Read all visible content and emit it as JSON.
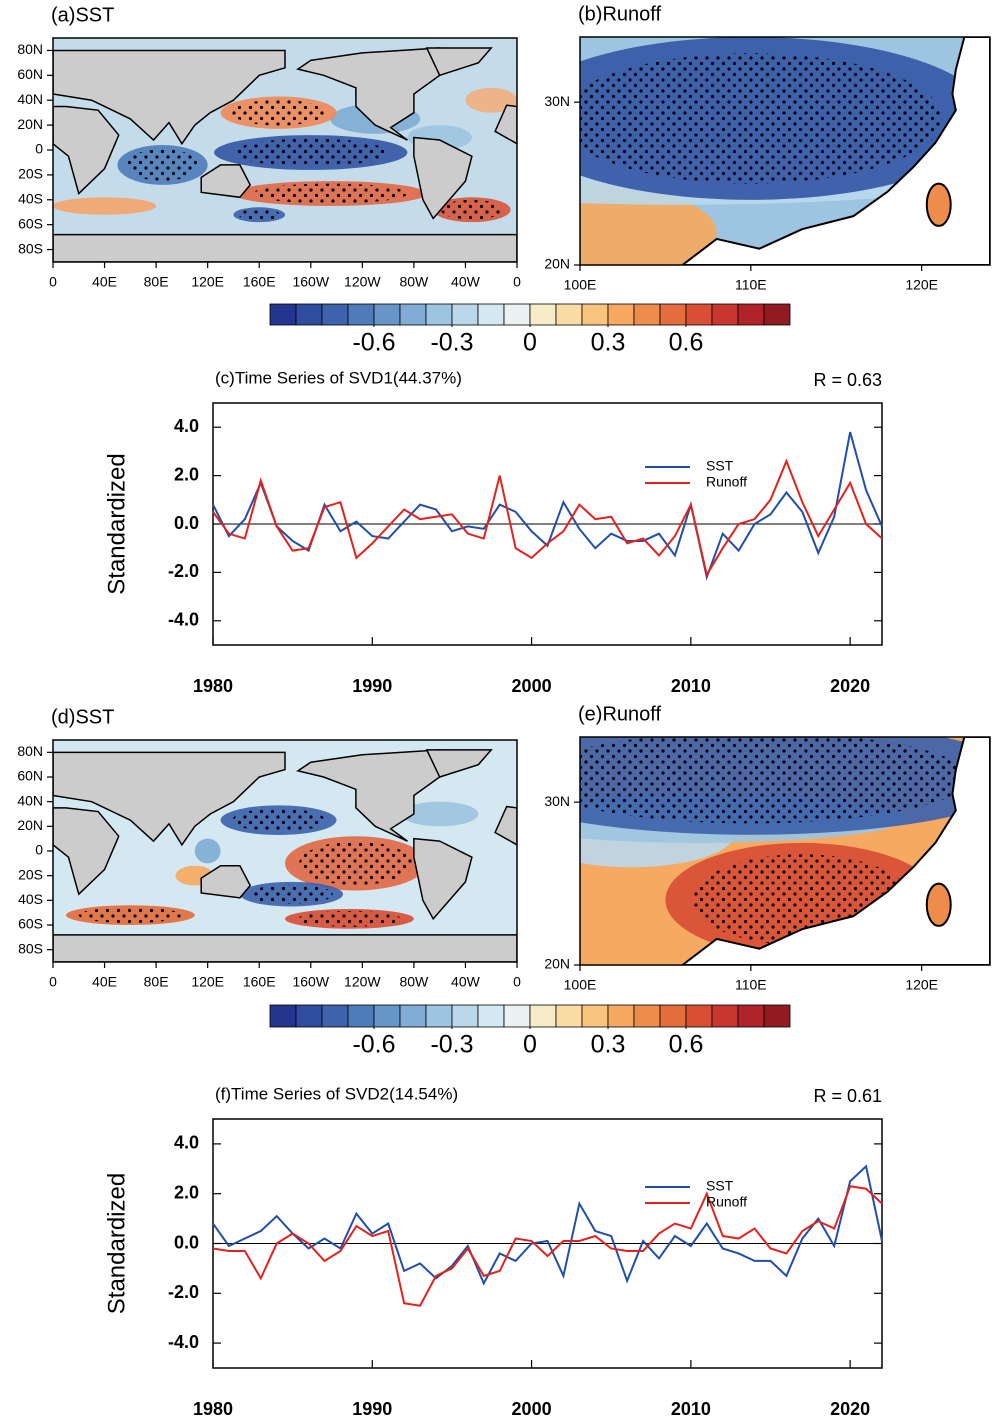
{
  "chart_data": [
    {
      "type": "map",
      "title": "(a)SST",
      "xlim": [
        0,
        360
      ],
      "xticks": [
        0,
        {
          "value": 40,
          "label": "40E"
        },
        {
          "value": 80,
          "label": "80E"
        },
        {
          "value": 120,
          "label": "120E"
        },
        {
          "value": 160,
          "label": "160E"
        },
        {
          "value": 200,
          "label": "160W"
        },
        {
          "value": 240,
          "label": "120W"
        },
        {
          "value": 280,
          "label": "80W"
        },
        {
          "value": 320,
          "label": "40W"
        },
        {
          "value": 360,
          "label": "0"
        }
      ],
      "ylim": [
        -90,
        90
      ],
      "yticks": [
        {
          "value": -80,
          "label": "80S"
        },
        {
          "value": -60,
          "label": "60S"
        },
        {
          "value": -40,
          "label": "40S"
        },
        {
          "value": -20,
          "label": "20S"
        },
        0,
        {
          "value": 20,
          "label": "20N"
        },
        {
          "value": 40,
          "label": "40N"
        },
        {
          "value": 60,
          "label": "60N"
        },
        {
          "value": 80,
          "label": "80N"
        }
      ]
    },
    {
      "type": "map",
      "title": "(b)Runoff",
      "xlim": [
        100,
        124
      ],
      "xticks": [
        {
          "value": 100,
          "label": "100E"
        },
        {
          "value": 110,
          "label": "110E"
        },
        {
          "value": 120,
          "label": "120E"
        }
      ],
      "ylim": [
        20,
        34
      ],
      "yticks": [
        {
          "value": 20,
          "label": "20N"
        },
        {
          "value": 30,
          "label": "30N"
        }
      ]
    },
    {
      "type": "colorbar",
      "colors": [
        "#24358f",
        "#2f4d9e",
        "#3d63ad",
        "#4e7cba",
        "#6596c7",
        "#7fadd4",
        "#9dc4e0",
        "#bad8ea",
        "#d4e8f1",
        "#e9f2f1",
        "#f6ecc8",
        "#f9dca4",
        "#f8c47e",
        "#f5a961",
        "#ee8c4c",
        "#e46d3e",
        "#d84f36",
        "#c8362f",
        "#b0232a",
        "#921a21"
      ],
      "xlim": [
        -1,
        1
      ],
      "xticks": [
        -0.6,
        -0.3,
        0,
        0.3,
        0.6
      ]
    },
    {
      "type": "line",
      "title": "(c)Time Series of SVD1(44.37%)",
      "annotation": "R = 0.63",
      "y_label": "Standardized",
      "x": [
        1980,
        1981,
        1982,
        1983,
        1984,
        1985,
        1986,
        1987,
        1988,
        1989,
        1990,
        1991,
        1992,
        1993,
        1994,
        1995,
        1996,
        1997,
        1998,
        1999,
        2000,
        2001,
        2002,
        2003,
        2004,
        2005,
        2006,
        2007,
        2008,
        2009,
        2010,
        2011,
        2012,
        2013,
        2014,
        2015,
        2016,
        2017,
        2018,
        2019,
        2020,
        2021,
        2022
      ],
      "series": [
        {
          "name": "SST",
          "color": "#1f4fa8",
          "values": [
            0.8,
            -0.5,
            0.2,
            1.7,
            -0.1,
            -0.7,
            -1.1,
            0.8,
            -0.3,
            0.1,
            -0.5,
            -0.6,
            0.1,
            0.8,
            0.6,
            -0.3,
            -0.1,
            -0.2,
            0.8,
            0.5,
            -0.3,
            -0.9,
            0.9,
            -0.2,
            -1.0,
            -0.4,
            -0.7,
            -0.7,
            -0.4,
            -1.3,
            0.8,
            -2.2,
            -0.4,
            -1.1,
            0.0,
            0.4,
            1.3,
            0.5,
            -1.2,
            0.3,
            3.8,
            1.4,
            -0.1
          ]
        },
        {
          "name": "Runoff",
          "color": "#e3221d",
          "values": [
            0.5,
            -0.4,
            -0.6,
            1.8,
            -0.1,
            -1.1,
            -1.0,
            0.7,
            0.9,
            -1.4,
            -0.8,
            -0.1,
            0.6,
            0.2,
            0.3,
            0.4,
            -0.4,
            -0.6,
            2.0,
            -1.0,
            -1.4,
            -0.8,
            -0.3,
            0.8,
            0.2,
            0.3,
            -0.8,
            -0.6,
            -1.3,
            -0.5,
            0.8,
            -2.1,
            -1.0,
            0.0,
            0.2,
            1.0,
            2.6,
            0.9,
            -0.5,
            0.6,
            1.7,
            0.0,
            -0.6
          ]
        }
      ],
      "xlim": [
        1980,
        2022
      ],
      "xticks": [
        1980,
        1990,
        2000,
        2010,
        2020
      ],
      "ylim": [
        -5,
        5
      ],
      "yticks": [
        {
          "value": -4,
          "label": "-4.0"
        },
        {
          "value": -2,
          "label": "-2.0"
        },
        {
          "value": 0,
          "label": "0.0"
        },
        {
          "value": 2,
          "label": "2.0"
        },
        {
          "value": 4,
          "label": "4.0"
        }
      ],
      "hline": 0
    },
    {
      "type": "map",
      "title": "(d)SST",
      "xlim": [
        0,
        360
      ],
      "xticks": [
        0,
        {
          "value": 40,
          "label": "40E"
        },
        {
          "value": 80,
          "label": "80E"
        },
        {
          "value": 120,
          "label": "120E"
        },
        {
          "value": 160,
          "label": "160E"
        },
        {
          "value": 200,
          "label": "160W"
        },
        {
          "value": 240,
          "label": "120W"
        },
        {
          "value": 280,
          "label": "80W"
        },
        {
          "value": 320,
          "label": "40W"
        },
        {
          "value": 360,
          "label": "0"
        }
      ],
      "ylim": [
        -90,
        90
      ],
      "yticks": [
        {
          "value": -80,
          "label": "80S"
        },
        {
          "value": -60,
          "label": "60S"
        },
        {
          "value": -40,
          "label": "40S"
        },
        {
          "value": -20,
          "label": "20S"
        },
        0,
        {
          "value": 20,
          "label": "20N"
        },
        {
          "value": 40,
          "label": "40N"
        },
        {
          "value": 60,
          "label": "60N"
        },
        {
          "value": 80,
          "label": "80N"
        }
      ]
    },
    {
      "type": "map",
      "title": "(e)Runoff",
      "xlim": [
        100,
        124
      ],
      "xticks": [
        {
          "value": 100,
          "label": "100E"
        },
        {
          "value": 110,
          "label": "110E"
        },
        {
          "value": 120,
          "label": "120E"
        }
      ],
      "ylim": [
        20,
        34
      ],
      "yticks": [
        {
          "value": 20,
          "label": "20N"
        },
        {
          "value": 30,
          "label": "30N"
        }
      ]
    },
    {
      "type": "colorbar",
      "colors": [
        "#24358f",
        "#2f4d9e",
        "#3d63ad",
        "#4e7cba",
        "#6596c7",
        "#7fadd4",
        "#9dc4e0",
        "#bad8ea",
        "#d4e8f1",
        "#e9f2f1",
        "#f6ecc8",
        "#f9dca4",
        "#f8c47e",
        "#f5a961",
        "#ee8c4c",
        "#e46d3e",
        "#d84f36",
        "#c8362f",
        "#b0232a",
        "#921a21"
      ],
      "xlim": [
        -1,
        1
      ],
      "xticks": [
        -0.6,
        -0.3,
        0,
        0.3,
        0.6
      ]
    },
    {
      "type": "line",
      "title": "(f)Time Series of SVD2(14.54%)",
      "annotation": "R = 0.61",
      "y_label": "Standardized",
      "x": [
        1980,
        1981,
        1982,
        1983,
        1984,
        1985,
        1986,
        1987,
        1988,
        1989,
        1990,
        1991,
        1992,
        1993,
        1994,
        1995,
        1996,
        1997,
        1998,
        1999,
        2000,
        2001,
        2002,
        2003,
        2004,
        2005,
        2006,
        2007,
        2008,
        2009,
        2010,
        2011,
        2012,
        2013,
        2014,
        2015,
        2016,
        2017,
        2018,
        2019,
        2020,
        2021,
        2022
      ],
      "series": [
        {
          "name": "SST",
          "color": "#1f4fa8",
          "values": [
            0.8,
            -0.1,
            0.2,
            0.5,
            1.1,
            0.4,
            -0.2,
            0.2,
            -0.2,
            1.2,
            0.4,
            0.8,
            -1.1,
            -0.8,
            -1.4,
            -0.9,
            -0.1,
            -1.6,
            -0.4,
            -0.7,
            0.0,
            0.1,
            -1.3,
            1.6,
            0.5,
            0.3,
            -1.5,
            0.1,
            -0.6,
            0.3,
            -0.1,
            0.8,
            -0.2,
            -0.4,
            -0.7,
            -0.7,
            -1.3,
            0.2,
            1.0,
            -0.1,
            2.5,
            3.1,
            0.1
          ]
        },
        {
          "name": "Runoff",
          "color": "#e3221d",
          "values": [
            -0.2,
            -0.3,
            -0.3,
            -1.4,
            0.0,
            0.4,
            0.0,
            -0.7,
            -0.3,
            0.7,
            0.3,
            0.5,
            -2.4,
            -2.5,
            -1.3,
            -1.0,
            -0.2,
            -1.3,
            -1.1,
            0.2,
            0.1,
            -0.5,
            0.1,
            0.1,
            0.3,
            -0.2,
            -0.3,
            -0.3,
            0.4,
            0.8,
            0.6,
            2.0,
            0.3,
            0.2,
            0.6,
            -0.2,
            -0.4,
            0.5,
            0.9,
            0.6,
            2.3,
            2.2,
            1.6
          ]
        }
      ],
      "xlim": [
        1980,
        2022
      ],
      "xticks": [
        1980,
        1990,
        2000,
        2010,
        2020
      ],
      "ylim": [
        -5,
        5
      ],
      "yticks": [
        {
          "value": -4,
          "label": "-4.0"
        },
        {
          "value": -2,
          "label": "-2.0"
        },
        {
          "value": 0,
          "label": "0.0"
        },
        {
          "value": 2,
          "label": "2.0"
        },
        {
          "value": 4,
          "label": "4.0"
        }
      ],
      "hline": 0
    }
  ]
}
